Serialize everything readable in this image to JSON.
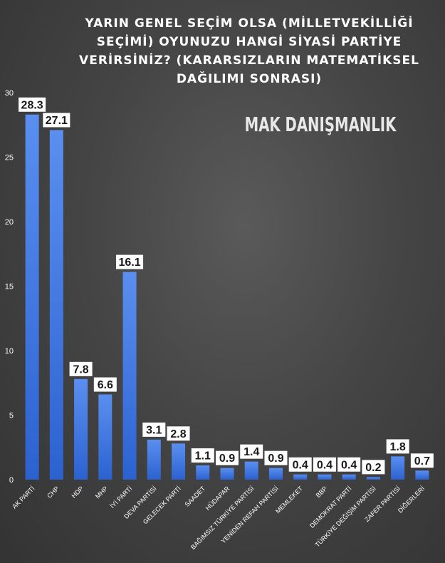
{
  "chart_data": {
    "type": "bar",
    "title_lines": [
      "YARIN GENEL SEÇİM OLSA (MİLLETVEKİLLİĞİ",
      "SEÇİMİ) OYUNUZU HANGİ SİYASİ PARTİYE",
      "VERİRSİNİZ? (KARARSIZLARIN MATEMATİKSEL",
      "DAĞILIMI SONRASI)"
    ],
    "watermark": "MAK DANIŞMANLIK",
    "categories": [
      "AK PARTİ",
      "CHP",
      "HDP",
      "MHP",
      "İYİ PARTİ",
      "DEVA PARTİSİ",
      "GELECEK PARTİ",
      "SAADET",
      "HÜDAPAR",
      "BAĞIMSIZ TÜRKİYE PARTİSİ",
      "YENİDEN REFAH PARTİSİ",
      "MEMLEKET",
      "BBP",
      "DEMOKRAT PARTİ",
      "TÜRKİYE DEĞİŞİM PARTİSİ",
      "ZAFER PARTİSİ",
      "DİĞERLERİ"
    ],
    "values": [
      28.3,
      27.1,
      7.8,
      6.6,
      16.1,
      3.1,
      2.8,
      1.1,
      0.9,
      1.4,
      0.9,
      0.4,
      0.4,
      0.4,
      0.2,
      1.8,
      0.7
    ],
    "data_labels": [
      "28.3",
      "27.1",
      "7.8",
      "6.6",
      "16.1",
      "3.1",
      "2.8",
      "1.1",
      "0.9",
      "1.4",
      "0.9",
      "0.4",
      "0.4",
      "0.4",
      "0.2",
      "1.8",
      "0.7"
    ],
    "yticks": [
      0,
      5,
      10,
      15,
      20,
      25,
      30
    ],
    "ylim": [
      0,
      30
    ],
    "grid": false,
    "legend": "none",
    "colors": {
      "bar_top": "#5a8ff0",
      "bar_bottom": "#2c62d0",
      "title": "#ffffff",
      "label_box": "#ffffff",
      "label_text": "#1a1a1a",
      "axis_text": "#ffffff",
      "watermark": "#e8e8e8"
    }
  }
}
